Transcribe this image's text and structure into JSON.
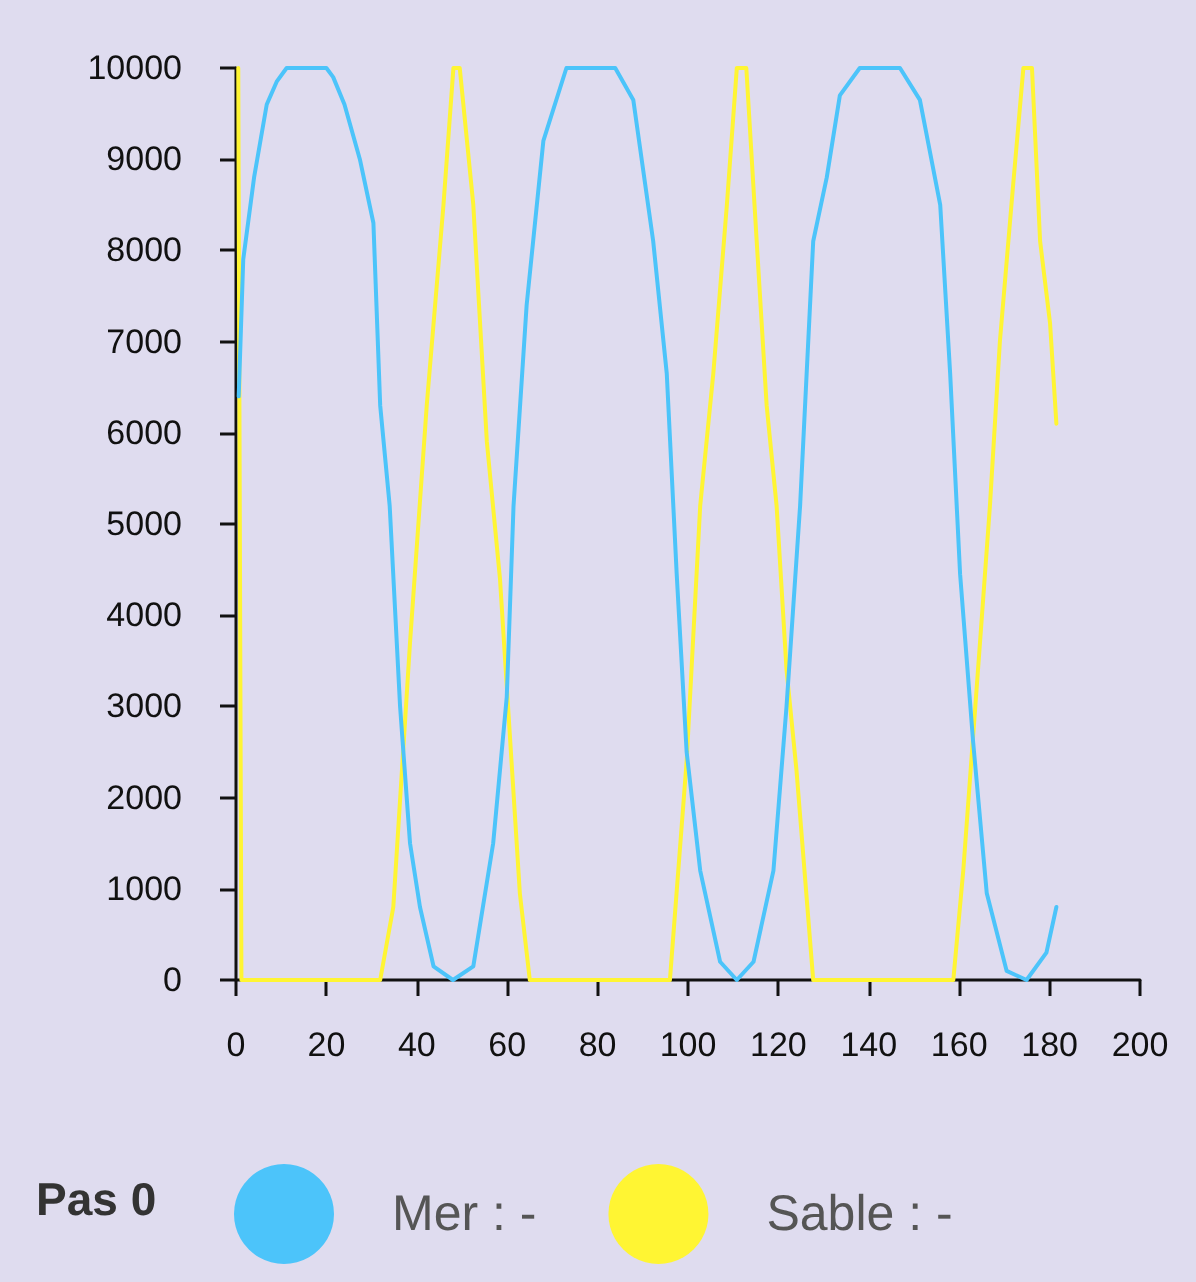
{
  "chart_data": {
    "type": "line",
    "legend_title": "Pas 0",
    "legend": "bottom",
    "grid": false,
    "marker": "none",
    "line_style": "solid",
    "xlim": [
      0,
      200
    ],
    "xticks": [
      0,
      20,
      40,
      60,
      80,
      100,
      120,
      140,
      160,
      180,
      200
    ],
    "ylim": [
      0,
      10000
    ],
    "yticks": [
      0,
      1000,
      2000,
      3000,
      4000,
      5000,
      6000,
      7000,
      8000,
      9000,
      10000
    ],
    "series": [
      {
        "name": "Mer : -",
        "color": "#4cc4fa",
        "x": [
          0.6,
          1.6,
          4,
          6.8,
          9,
          11.2,
          15,
          20,
          21.5,
          24,
          27.4,
          30.4,
          31.9,
          34,
          36.3,
          38.5,
          40.7,
          43.7,
          48,
          52.5,
          56.9,
          59.9,
          61.4,
          64.3,
          68,
          73.1,
          78,
          83.9,
          87.9,
          92.3,
          95.3,
          97.5,
          99.7,
          102.7,
          107.1,
          110.8,
          114.5,
          118.9,
          121.8,
          124.8,
          127.7,
          130.7,
          133.6,
          138,
          142,
          146.9,
          151.3,
          155.8,
          158,
          160.2,
          163.1,
          166.1,
          170.5,
          174.9,
          179.3,
          181.5
        ],
        "values": [
          6400,
          7900,
          8800,
          9600,
          9850,
          10000,
          10000,
          10000,
          9900,
          9600,
          9000,
          8300,
          6300,
          5200,
          3000,
          1500,
          800,
          150,
          0,
          150,
          1500,
          3100,
          5200,
          7400,
          9200,
          10000,
          10000,
          10000,
          9650,
          8100,
          6650,
          4450,
          2500,
          1200,
          200,
          0,
          200,
          1200,
          3000,
          5200,
          8100,
          8800,
          9700,
          10000,
          10000,
          10000,
          9650,
          8500,
          6650,
          4450,
          2600,
          950,
          100,
          0,
          300,
          800
        ]
      },
      {
        "name": "Sable : -",
        "color": "#fff533",
        "x": [
          0.5,
          1.2,
          10,
          20,
          31.9,
          34.8,
          38.5,
          42.2,
          45.9,
          48.1,
          49.5,
          52.5,
          55.5,
          58.4,
          62.8,
          65,
          80,
          96,
          99.7,
          102.7,
          105.6,
          108.6,
          110.8,
          112.9,
          115.2,
          117.4,
          119.6,
          121.8,
          124,
          127.7,
          140,
          158.7,
          160.9,
          164.6,
          166.8,
          169,
          171.9,
          174.2,
          176.1,
          177.9,
          180.1,
          181.5
        ],
        "values": [
          10000,
          0,
          0,
          0,
          0,
          800,
          3700,
          6300,
          8500,
          10000,
          10000,
          8500,
          5900,
          4400,
          950,
          0,
          0,
          0,
          2400,
          5200,
          6650,
          8500,
          10000,
          10000,
          8100,
          6300,
          5200,
          3400,
          2300,
          0,
          0,
          0,
          1200,
          3700,
          5200,
          7000,
          8700,
          10000,
          10000,
          8100,
          7200,
          6100
        ]
      }
    ]
  }
}
